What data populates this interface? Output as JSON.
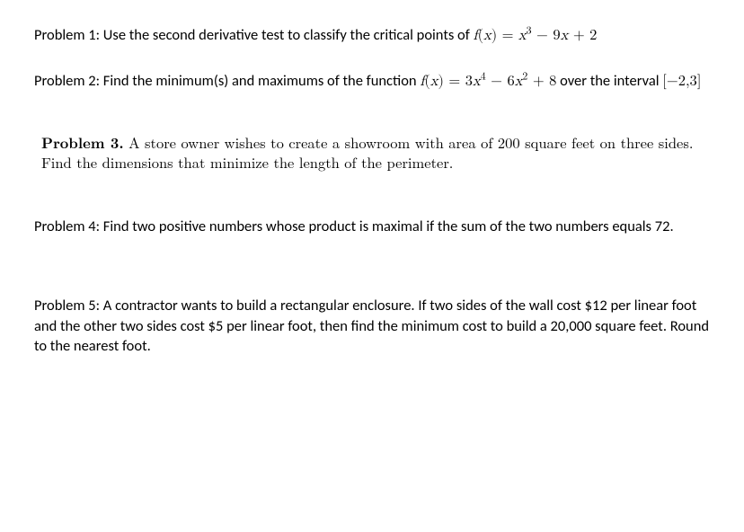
{
  "p1": {
    "label": "Problem 1: ",
    "text_a": "Use the second derivative test to classify the critical points of  ",
    "fn": "f",
    "var": "x",
    "eq": " = ",
    "term1_coef": "",
    "term1_var": "x",
    "term1_exp": "3",
    "minus": " − ",
    "term2_coef": "9",
    "term2_var": "x",
    "plus": " + ",
    "term3": "2"
  },
  "p2": {
    "label": "Problem 2: ",
    "text_a": "Find the minimum(s) and maximums of the function  ",
    "fn": "f",
    "var": "x",
    "eq": " = ",
    "c1": "3",
    "v1": "x",
    "e1": "4",
    "minus": " − ",
    "c2": "6",
    "v2": "x",
    "e2": "2",
    "plus": " + ",
    "c3": "8",
    "text_b": "  over the interval ",
    "interval": "[−2,3]"
  },
  "p3": {
    "label": "Problem 3.",
    "text": " A store owner wishes to create a showroom with area of 200 square feet on three sides. Find the dimensions that minimize the length of the perimeter."
  },
  "p4": {
    "label": "Problem 4: ",
    "text": "Find two positive numbers whose product is maximal if the sum of the two numbers equals 72."
  },
  "p5": {
    "label": "Problem 5: ",
    "text": "A contractor wants to build a rectangular enclosure. If two sides of the wall cost $12 per linear foot and the other two sides cost $5 per linear foot, then find the minimum cost to build a 20,000 square feet.  Round to the nearest foot."
  }
}
